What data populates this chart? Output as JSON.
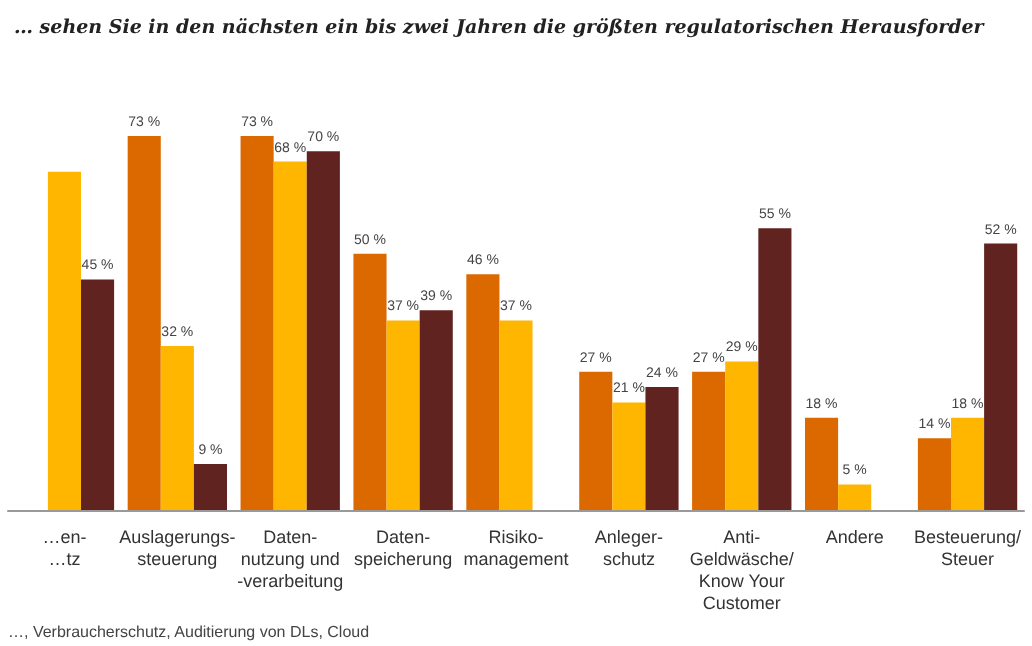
{
  "chart_data": {
    "type": "bar",
    "title": "… sehen Sie in den nächsten ein bis zwei Jahren die größten regulatorischen Herausforder",
    "categories": [
      "…en-\n…tz",
      "Auslagerungs-\nsteuerung",
      "Daten-\nnutzung und\n-verarbeitung",
      "Daten-\nspeicherung",
      "Risiko-\nmanagement",
      "Anleger-\nschutz",
      "Anti-\nGeldwäsche/\nKnow Your\nCustomer",
      "Andere",
      "Besteuerung/\nSteuer"
    ],
    "series": [
      {
        "color": "#dc6900",
        "values": [
          null,
          73,
          73,
          50,
          46,
          27,
          27,
          18,
          14
        ],
        "value_labels": [
          null,
          "73 %",
          "73 %",
          "50 %",
          "46 %",
          "27 %",
          "27 %",
          "18 %",
          "14 %"
        ]
      },
      {
        "color": "#ffb600",
        "values": [
          66,
          32,
          68,
          37,
          37,
          21,
          29,
          5,
          18
        ],
        "value_labels": [
          null,
          "32 %",
          "68 %",
          "37 %",
          "37 %",
          "21 %",
          "29 %",
          "5 %",
          "18 %"
        ]
      },
      {
        "color": "#602320",
        "values": [
          45,
          9,
          70,
          39,
          null,
          24,
          55,
          null,
          52
        ],
        "value_labels": [
          "45 %",
          "9 %",
          "70 %",
          "39 %",
          null,
          "24 %",
          "55 %",
          null,
          "52 %"
        ]
      }
    ],
    "annotations": [
      "…, Verbraucherschutz, Auditierung von DLs, Cloud"
    ],
    "stacked": false
  }
}
